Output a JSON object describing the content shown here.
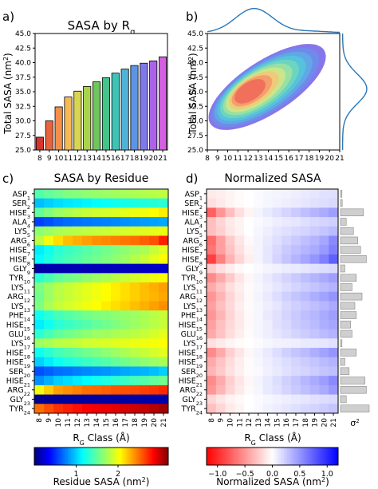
{
  "panels": {
    "a": {
      "letter": "a)",
      "title": "SASA by R",
      "title_sub": "g"
    },
    "b": {
      "letter": "b)"
    },
    "c": {
      "letter": "c)",
      "title": "SASA by Residue"
    },
    "d": {
      "letter": "d)",
      "title": "Normalized SASA"
    }
  },
  "labels": {
    "total_sasa": "Total SASA (nm",
    "total_sasa_sup": "2",
    "total_sasa_end": ")",
    "rg_class": "R",
    "rg_class_sub": "G",
    "rg_class_end": " Class (Å)",
    "sigma": "σ",
    "sigma_sup": "2"
  },
  "chart_data": [
    {
      "panel": "a",
      "type": "bar",
      "title": "SASA by Rg",
      "categories": [
        "8",
        "9",
        "10",
        "11",
        "12",
        "13",
        "14",
        "15",
        "16",
        "17",
        "18",
        "19",
        "20",
        "21"
      ],
      "values": [
        27.2,
        30.0,
        32.4,
        34.1,
        35.1,
        35.9,
        36.7,
        37.4,
        38.2,
        38.9,
        39.5,
        39.9,
        40.3,
        41.0
      ],
      "colors": [
        "#d6342e",
        "#e7633d",
        "#f58f48",
        "#f7b955",
        "#d9d552",
        "#a9d34b",
        "#6fc75c",
        "#44c48a",
        "#3ec3b7",
        "#4fb3d9",
        "#5c95e6",
        "#7f79e8",
        "#ab63e6",
        "#d45fe3"
      ],
      "ylabel": "Total SASA (nm2)",
      "ylim": [
        25.0,
        45.0
      ],
      "yticks": [
        "25.0",
        "27.5",
        "30.0",
        "32.5",
        "35.0",
        "37.5",
        "40.0",
        "42.5",
        "45.0"
      ],
      "xticks": [
        "8",
        "9",
        "10",
        "11",
        "12",
        "13",
        "14",
        "15",
        "16",
        "17",
        "18",
        "19",
        "20",
        "21"
      ]
    },
    {
      "panel": "b",
      "type": "area",
      "subtype": "kde-2d-contour",
      "ylabel": "Total SASA (nm2)",
      "xlim": [
        8,
        21
      ],
      "ylim": [
        25.0,
        45.0
      ],
      "xticks": [
        "8",
        "9",
        "10",
        "11",
        "12",
        "13",
        "14",
        "15",
        "16",
        "17",
        "18",
        "19",
        "20",
        "21"
      ],
      "yticks": [
        "25.0",
        "27.5",
        "30.0",
        "32.5",
        "35.0",
        "37.5",
        "40.0",
        "42.5",
        "45.0"
      ],
      "density_peak": {
        "x": 12.0,
        "y": 35.0
      },
      "contour_levels": 9,
      "contour_colors": [
        "#7b6be8",
        "#6e8de9",
        "#5fa9e6",
        "#56c4da",
        "#6fd6bf",
        "#9be2a2",
        "#cfe58a",
        "#f2c877",
        "#f49b6a",
        "#ef6b5b"
      ],
      "marginal_color": "#2a77b8"
    },
    {
      "panel": "c",
      "type": "heatmap",
      "title": "SASA by Residue",
      "xlabel": "RG Class (Å)",
      "x": [
        "8",
        "9",
        "10",
        "11",
        "12",
        "13",
        "14",
        "15",
        "16",
        "17",
        "18",
        "19",
        "20",
        "21"
      ],
      "residues": [
        {
          "name": "ASP",
          "num": "1"
        },
        {
          "name": "SER",
          "num": "2"
        },
        {
          "name": "HISE",
          "num": "3"
        },
        {
          "name": "ALA",
          "num": "4"
        },
        {
          "name": "LYS",
          "num": "5"
        },
        {
          "name": "ARG",
          "num": "6"
        },
        {
          "name": "HISE",
          "num": "7"
        },
        {
          "name": "HISE",
          "num": "8"
        },
        {
          "name": "GLY",
          "num": "9"
        },
        {
          "name": "TYR",
          "num": "10"
        },
        {
          "name": "LYS",
          "num": "11"
        },
        {
          "name": "ARG",
          "num": "12"
        },
        {
          "name": "LYS",
          "num": "13"
        },
        {
          "name": "PHE",
          "num": "14"
        },
        {
          "name": "HISE",
          "num": "15"
        },
        {
          "name": "GLU",
          "num": "16"
        },
        {
          "name": "LYS",
          "num": "17"
        },
        {
          "name": "HISE",
          "num": "18"
        },
        {
          "name": "HISE",
          "num": "19"
        },
        {
          "name": "SER",
          "num": "20"
        },
        {
          "name": "HISE",
          "num": "21"
        },
        {
          "name": "ARG",
          "num": "22"
        },
        {
          "name": "GLY",
          "num": "23"
        },
        {
          "name": "TYR",
          "num": "24"
        }
      ],
      "values": [
        [
          1.45,
          1.5,
          1.55,
          1.6,
          1.62,
          1.65,
          1.68,
          1.7,
          1.72,
          1.74,
          1.76,
          1.78,
          1.8,
          1.82
        ],
        [
          0.95,
          1.0,
          1.05,
          1.08,
          1.1,
          1.12,
          1.15,
          1.18,
          1.2,
          1.22,
          1.24,
          1.26,
          1.28,
          1.3
        ],
        [
          1.5,
          1.6,
          1.7,
          1.75,
          1.8,
          1.85,
          1.88,
          1.9,
          1.92,
          1.95,
          1.98,
          2.0,
          2.05,
          2.1
        ],
        [
          0.55,
          0.6,
          0.65,
          0.68,
          0.7,
          0.72,
          0.74,
          0.76,
          0.78,
          0.8,
          0.82,
          0.84,
          0.86,
          0.88
        ],
        [
          1.65,
          1.7,
          1.75,
          1.78,
          1.8,
          1.82,
          1.84,
          1.86,
          1.88,
          1.9,
          1.92,
          1.94,
          1.96,
          1.98
        ],
        [
          1.8,
          2.0,
          2.15,
          2.25,
          2.3,
          2.35,
          2.4,
          2.42,
          2.45,
          2.48,
          2.5,
          2.55,
          2.6,
          2.75
        ],
        [
          1.1,
          1.2,
          1.3,
          1.35,
          1.4,
          1.45,
          1.5,
          1.55,
          1.6,
          1.65,
          1.7,
          1.75,
          1.85,
          1.95
        ],
        [
          1.15,
          1.25,
          1.35,
          1.4,
          1.45,
          1.5,
          1.55,
          1.6,
          1.65,
          1.7,
          1.78,
          1.85,
          1.95,
          2.05
        ],
        [
          0.1,
          0.12,
          0.13,
          0.14,
          0.15,
          0.15,
          0.16,
          0.16,
          0.17,
          0.17,
          0.18,
          0.18,
          0.19,
          0.2
        ],
        [
          1.3,
          1.4,
          1.5,
          1.55,
          1.6,
          1.65,
          1.7,
          1.75,
          1.8,
          1.85,
          1.9,
          1.95,
          2.0,
          2.05
        ],
        [
          1.6,
          1.7,
          1.8,
          1.85,
          1.9,
          1.95,
          2.0,
          2.05,
          2.1,
          2.15,
          2.2,
          2.25,
          2.3,
          2.35
        ],
        [
          1.55,
          1.7,
          1.8,
          1.85,
          1.9,
          1.95,
          2.0,
          2.05,
          2.1,
          2.15,
          2.2,
          2.25,
          2.28,
          2.32
        ],
        [
          1.6,
          1.75,
          1.85,
          1.9,
          1.95,
          2.0,
          2.05,
          2.1,
          2.15,
          2.2,
          2.25,
          2.3,
          2.35,
          2.4
        ],
        [
          1.2,
          1.3,
          1.4,
          1.45,
          1.5,
          1.55,
          1.6,
          1.62,
          1.65,
          1.68,
          1.7,
          1.75,
          1.8,
          1.85
        ],
        [
          1.1,
          1.2,
          1.3,
          1.35,
          1.4,
          1.45,
          1.5,
          1.55,
          1.6,
          1.65,
          1.7,
          1.75,
          1.8,
          1.85
        ],
        [
          1.3,
          1.4,
          1.5,
          1.55,
          1.6,
          1.65,
          1.7,
          1.72,
          1.75,
          1.78,
          1.8,
          1.85,
          1.9,
          1.95
        ],
        [
          1.7,
          1.75,
          1.8,
          1.82,
          1.85,
          1.88,
          1.9,
          1.92,
          1.94,
          1.96,
          1.98,
          2.0,
          2.02,
          2.05
        ],
        [
          1.2,
          1.3,
          1.4,
          1.45,
          1.5,
          1.55,
          1.6,
          1.65,
          1.7,
          1.75,
          1.8,
          1.85,
          1.9,
          1.95
        ],
        [
          1.0,
          1.1,
          1.2,
          1.25,
          1.3,
          1.35,
          1.4,
          1.45,
          1.5,
          1.55,
          1.6,
          1.65,
          1.7,
          1.75
        ],
        [
          0.6,
          0.65,
          0.7,
          0.72,
          0.75,
          0.78,
          0.8,
          0.82,
          0.85,
          0.88,
          0.9,
          0.92,
          0.95,
          1.0
        ],
        [
          0.8,
          0.9,
          1.0,
          1.05,
          1.1,
          1.15,
          1.2,
          1.25,
          1.3,
          1.35,
          1.4,
          1.45,
          1.5,
          1.55
        ],
        [
          2.0,
          2.2,
          2.35,
          2.4,
          2.45,
          2.5,
          2.52,
          2.55,
          2.58,
          2.6,
          2.62,
          2.65,
          2.68,
          2.72
        ],
        [
          0.05,
          0.06,
          0.07,
          0.08,
          0.08,
          0.09,
          0.09,
          0.1,
          0.1,
          0.1,
          0.11,
          0.11,
          0.12,
          0.12
        ],
        [
          2.5,
          2.6,
          2.7,
          2.75,
          2.8,
          2.85,
          2.88,
          2.9,
          2.92,
          2.95,
          2.98,
          3.0,
          3.05,
          3.1
        ]
      ],
      "colorbar": {
        "label": "Residue SASA (nm2)",
        "range": [
          0.0,
          3.2
        ],
        "ticks": [
          "1",
          "2"
        ],
        "colormap": "jet"
      }
    },
    {
      "panel": "d",
      "type": "heatmap",
      "title": "Normalized SASA",
      "xlabel": "RG Class (Å)",
      "x": [
        "8",
        "9",
        "10",
        "11",
        "12",
        "13",
        "14",
        "15",
        "16",
        "17",
        "18",
        "19",
        "20",
        "21"
      ],
      "values": [
        [
          -0.1,
          -0.08,
          -0.05,
          -0.02,
          0.0,
          0.02,
          0.04,
          0.05,
          0.06,
          0.08,
          0.1,
          0.12,
          0.14,
          0.15
        ],
        [
          -0.15,
          -0.1,
          -0.05,
          -0.02,
          0.0,
          0.02,
          0.04,
          0.06,
          0.08,
          0.1,
          0.12,
          0.14,
          0.16,
          0.18
        ],
        [
          -0.75,
          -0.5,
          -0.3,
          -0.15,
          -0.05,
          0.05,
          0.1,
          0.15,
          0.2,
          0.25,
          0.3,
          0.35,
          0.4,
          0.45
        ],
        [
          -0.3,
          -0.2,
          -0.1,
          -0.05,
          0.0,
          0.03,
          0.05,
          0.08,
          0.1,
          0.12,
          0.15,
          0.18,
          0.2,
          0.22
        ],
        [
          -0.3,
          -0.22,
          -0.12,
          -0.06,
          0.0,
          0.04,
          0.08,
          0.12,
          0.15,
          0.18,
          0.2,
          0.24,
          0.28,
          0.32
        ],
        [
          -0.7,
          -0.45,
          -0.25,
          -0.12,
          -0.03,
          0.05,
          0.1,
          0.15,
          0.2,
          0.25,
          0.3,
          0.35,
          0.42,
          0.55
        ],
        [
          -0.65,
          -0.45,
          -0.28,
          -0.15,
          -0.05,
          0.05,
          0.12,
          0.18,
          0.25,
          0.3,
          0.35,
          0.4,
          0.48,
          0.6
        ],
        [
          -0.9,
          -0.6,
          -0.35,
          -0.2,
          -0.08,
          0.05,
          0.12,
          0.2,
          0.28,
          0.35,
          0.42,
          0.5,
          0.6,
          0.75
        ],
        [
          -0.25,
          -0.15,
          -0.08,
          -0.03,
          0.0,
          0.03,
          0.05,
          0.07,
          0.09,
          0.1,
          0.12,
          0.14,
          0.16,
          0.18
        ],
        [
          -0.55,
          -0.4,
          -0.25,
          -0.12,
          -0.04,
          0.05,
          0.1,
          0.15,
          0.2,
          0.25,
          0.3,
          0.35,
          0.4,
          0.45
        ],
        [
          -0.4,
          -0.28,
          -0.15,
          -0.08,
          -0.02,
          0.04,
          0.08,
          0.12,
          0.16,
          0.2,
          0.24,
          0.28,
          0.32,
          0.36
        ],
        [
          -0.5,
          -0.35,
          -0.2,
          -0.1,
          -0.03,
          0.05,
          0.1,
          0.16,
          0.22,
          0.28,
          0.32,
          0.38,
          0.44,
          0.5
        ],
        [
          -0.45,
          -0.3,
          -0.18,
          -0.08,
          -0.02,
          0.04,
          0.08,
          0.12,
          0.18,
          0.22,
          0.26,
          0.3,
          0.34,
          0.4
        ],
        [
          -0.5,
          -0.35,
          -0.2,
          -0.1,
          -0.03,
          0.04,
          0.1,
          0.14,
          0.2,
          0.25,
          0.3,
          0.34,
          0.4,
          0.45
        ],
        [
          -0.45,
          -0.3,
          -0.18,
          -0.1,
          -0.03,
          0.04,
          0.08,
          0.14,
          0.18,
          0.24,
          0.28,
          0.32,
          0.38,
          0.42
        ],
        [
          -0.4,
          -0.28,
          -0.16,
          -0.08,
          -0.02,
          0.04,
          0.08,
          0.12,
          0.16,
          0.2,
          0.24,
          0.28,
          0.32,
          0.36
        ],
        [
          -0.15,
          -0.1,
          -0.05,
          -0.02,
          0.0,
          0.02,
          0.04,
          0.06,
          0.07,
          0.08,
          0.1,
          0.11,
          0.12,
          0.14
        ],
        [
          -0.55,
          -0.4,
          -0.22,
          -0.12,
          -0.04,
          0.05,
          0.1,
          0.16,
          0.22,
          0.28,
          0.32,
          0.38,
          0.44,
          0.5
        ],
        [
          -0.4,
          -0.28,
          -0.16,
          -0.08,
          -0.02,
          0.04,
          0.08,
          0.12,
          0.16,
          0.2,
          0.24,
          0.28,
          0.32,
          0.36
        ],
        [
          -0.35,
          -0.25,
          -0.14,
          -0.07,
          -0.02,
          0.03,
          0.07,
          0.1,
          0.14,
          0.18,
          0.2,
          0.24,
          0.28,
          0.3
        ],
        [
          -0.55,
          -0.4,
          -0.22,
          -0.12,
          -0.04,
          0.05,
          0.1,
          0.16,
          0.22,
          0.28,
          0.34,
          0.4,
          0.46,
          0.55
        ],
        [
          -0.5,
          -0.35,
          -0.2,
          -0.1,
          -0.03,
          0.04,
          0.1,
          0.14,
          0.2,
          0.25,
          0.3,
          0.35,
          0.4,
          0.48
        ],
        [
          -0.2,
          -0.12,
          -0.06,
          -0.03,
          0.0,
          0.02,
          0.04,
          0.06,
          0.08,
          0.1,
          0.12,
          0.14,
          0.16,
          0.18
        ],
        [
          -0.3,
          -0.2,
          -0.1,
          -0.05,
          0.0,
          0.03,
          0.06,
          0.09,
          0.12,
          0.15,
          0.18,
          0.2,
          0.24,
          0.28
        ]
      ],
      "sigma2": [
        0.05,
        0.06,
        0.8,
        0.2,
        0.45,
        0.6,
        0.7,
        0.9,
        0.15,
        0.55,
        0.4,
        0.75,
        0.5,
        0.55,
        0.35,
        0.4,
        0.05,
        0.55,
        0.15,
        0.3,
        0.85,
        0.9,
        0.2,
        1.0
      ],
      "sigma2_label": "σ2",
      "colorbar": {
        "label": "Normalized SASA (nm2)",
        "range": [
          -1.2,
          1.2
        ],
        "ticks": [
          "−1.0",
          "−0.5",
          "0.0",
          "0.5",
          "1.0"
        ],
        "colormap": "bwr"
      }
    }
  ]
}
